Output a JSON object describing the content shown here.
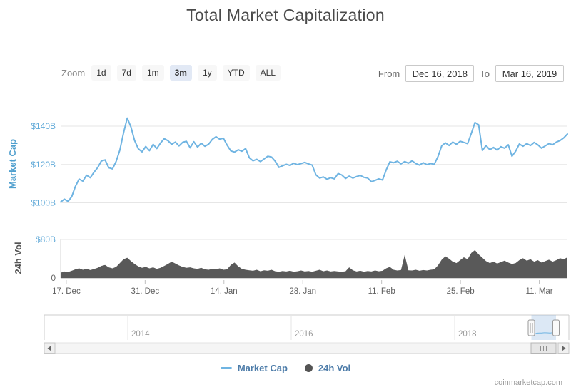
{
  "header": {
    "title": "Total Market Capitalization"
  },
  "toolbar": {
    "zoom_label": "Zoom",
    "presets": [
      {
        "label": "1d",
        "selected": false
      },
      {
        "label": "7d",
        "selected": false
      },
      {
        "label": "1m",
        "selected": false
      },
      {
        "label": "3m",
        "selected": true
      },
      {
        "label": "1y",
        "selected": false
      },
      {
        "label": "YTD",
        "selected": false
      },
      {
        "label": "ALL",
        "selected": false
      }
    ],
    "from_label": "From",
    "from_value": "Dec 16, 2018",
    "to_label": "To",
    "to_value": "Mar 16, 2019"
  },
  "legend": {
    "items": [
      {
        "label": "Market Cap",
        "marker": "line",
        "color": "#6fb4e2"
      },
      {
        "label": "24h Vol",
        "marker": "circle",
        "color": "#545454"
      }
    ]
  },
  "watermark": "coinmarketcap.com",
  "colors": {
    "line": "#6fb4e2",
    "volume_fill": "#595959",
    "axis_blue": "#63abd9",
    "axis_title_blue": "#4f9fce",
    "axis_gray": "#666666",
    "grid": "#e6e6e6",
    "tick": "#c0c0c0",
    "navigator_mask": "#74a3d9"
  },
  "chart_data": {
    "type": "line",
    "title": "Total Market Capitalization",
    "x_range_start": "Dec 16, 2018",
    "x_range_end": "Mar 16, 2019",
    "days_total": 90,
    "x_ticks": [
      "17. Dec",
      "31. Dec",
      "14. Jan",
      "28. Jan",
      "11. Feb",
      "25. Feb",
      "11. Mar"
    ],
    "x_tick_days": [
      1,
      15,
      29,
      43,
      57,
      71,
      85
    ],
    "panes": [
      {
        "title": "Market Cap",
        "type": "line",
        "unit": "USD billions",
        "ylim": [
          97,
          148
        ],
        "y_ticks": [
          {
            "label": "$140B",
            "value": 140
          },
          {
            "label": "$120B",
            "value": 120
          },
          {
            "label": "$100B",
            "value": 100
          }
        ],
        "values": [
          100.4,
          101.9,
          100.7,
          103.2,
          108.6,
          112.4,
          111.3,
          114.4,
          113.1,
          115.9,
          118.3,
          121.8,
          122.4,
          118.3,
          117.7,
          121.6,
          127.5,
          136.5,
          144.2,
          139.5,
          132.5,
          128.2,
          126.6,
          129.4,
          127.2,
          130.5,
          128.3,
          131.2,
          133.5,
          132.4,
          130.5,
          131.7,
          129.7,
          131.6,
          132.1,
          128.7,
          131.9,
          129.1,
          131.1,
          129.5,
          130.6,
          133.1,
          134.5,
          133.2,
          133.7,
          130.1,
          127.1,
          126.5,
          127.7,
          126.9,
          128.3,
          123.5,
          121.9,
          122.7,
          121.5,
          122.9,
          124.3,
          123.9,
          121.7,
          118.5,
          119.3,
          120.1,
          119.5,
          120.7,
          119.9,
          120.5,
          121.1,
          120.3,
          119.7,
          114.6,
          112.9,
          113.5,
          112.3,
          113.1,
          112.5,
          115.3,
          114.5,
          112.7,
          113.9,
          112.9,
          113.7,
          114.3,
          113.3,
          112.9,
          111.0,
          111.7,
          112.5,
          111.9,
          117.2,
          121.4,
          120.9,
          121.7,
          120.3,
          121.5,
          120.7,
          121.9,
          120.5,
          119.7,
          120.9,
          119.9,
          120.5,
          120.1,
          124.1,
          129.7,
          131.3,
          129.9,
          131.7,
          130.5,
          132.1,
          131.5,
          130.9,
          136.2,
          141.9,
          140.7,
          127.3,
          129.9,
          127.7,
          128.9,
          127.5,
          129.3,
          128.5,
          130.3,
          124.3,
          126.9,
          130.7,
          129.5,
          130.9,
          129.9,
          131.5,
          130.3,
          128.5,
          129.7,
          130.9,
          130.3,
          131.7,
          132.5,
          133.9,
          135.9
        ]
      },
      {
        "title": "24h Vol",
        "type": "area",
        "unit": "USD billions",
        "ylim": [
          0,
          80
        ],
        "y_ticks": [
          {
            "label": "$80B",
            "value": 80
          },
          {
            "label": "0",
            "value": 0
          }
        ],
        "values": [
          11,
          13.5,
          12.5,
          15,
          18,
          20,
          17,
          19,
          16.5,
          18.5,
          21,
          25,
          27,
          22,
          20,
          23,
          31,
          39,
          42,
          35,
          29,
          24,
          21,
          23,
          20,
          22,
          19,
          21,
          25,
          29,
          34,
          30,
          26,
          23,
          21,
          22,
          20,
          19,
          21,
          18,
          17,
          19,
          18,
          20,
          17,
          18,
          27,
          32,
          24,
          19,
          17,
          16,
          15,
          17,
          14,
          16,
          15,
          17,
          14,
          13,
          14.5,
          13.5,
          15,
          13,
          14,
          15.5,
          13.5,
          14.5,
          13,
          15,
          17,
          14,
          15.5,
          13.5,
          14.5,
          13.5,
          13,
          14,
          22,
          16,
          13.5,
          15,
          13,
          14.5,
          13.5,
          15.5,
          14,
          15,
          20,
          23,
          17,
          15.5,
          16.5,
          48,
          16,
          15.5,
          17,
          15,
          16.5,
          15.5,
          17,
          18,
          26,
          38,
          45,
          40,
          34,
          31,
          37,
          43,
          39,
          52,
          58,
          49,
          42,
          35,
          31,
          34,
          30,
          33,
          36,
          32,
          29,
          31,
          37,
          41,
          36,
          39,
          34,
          37,
          32,
          35,
          38,
          34,
          37,
          41,
          39,
          43
        ]
      }
    ],
    "navigator": {
      "year_labels": [
        "2014",
        "2016",
        "2018"
      ],
      "selected_range_start": "Dec 16, 2018",
      "selected_range_end": "Mar 16, 2019"
    }
  }
}
